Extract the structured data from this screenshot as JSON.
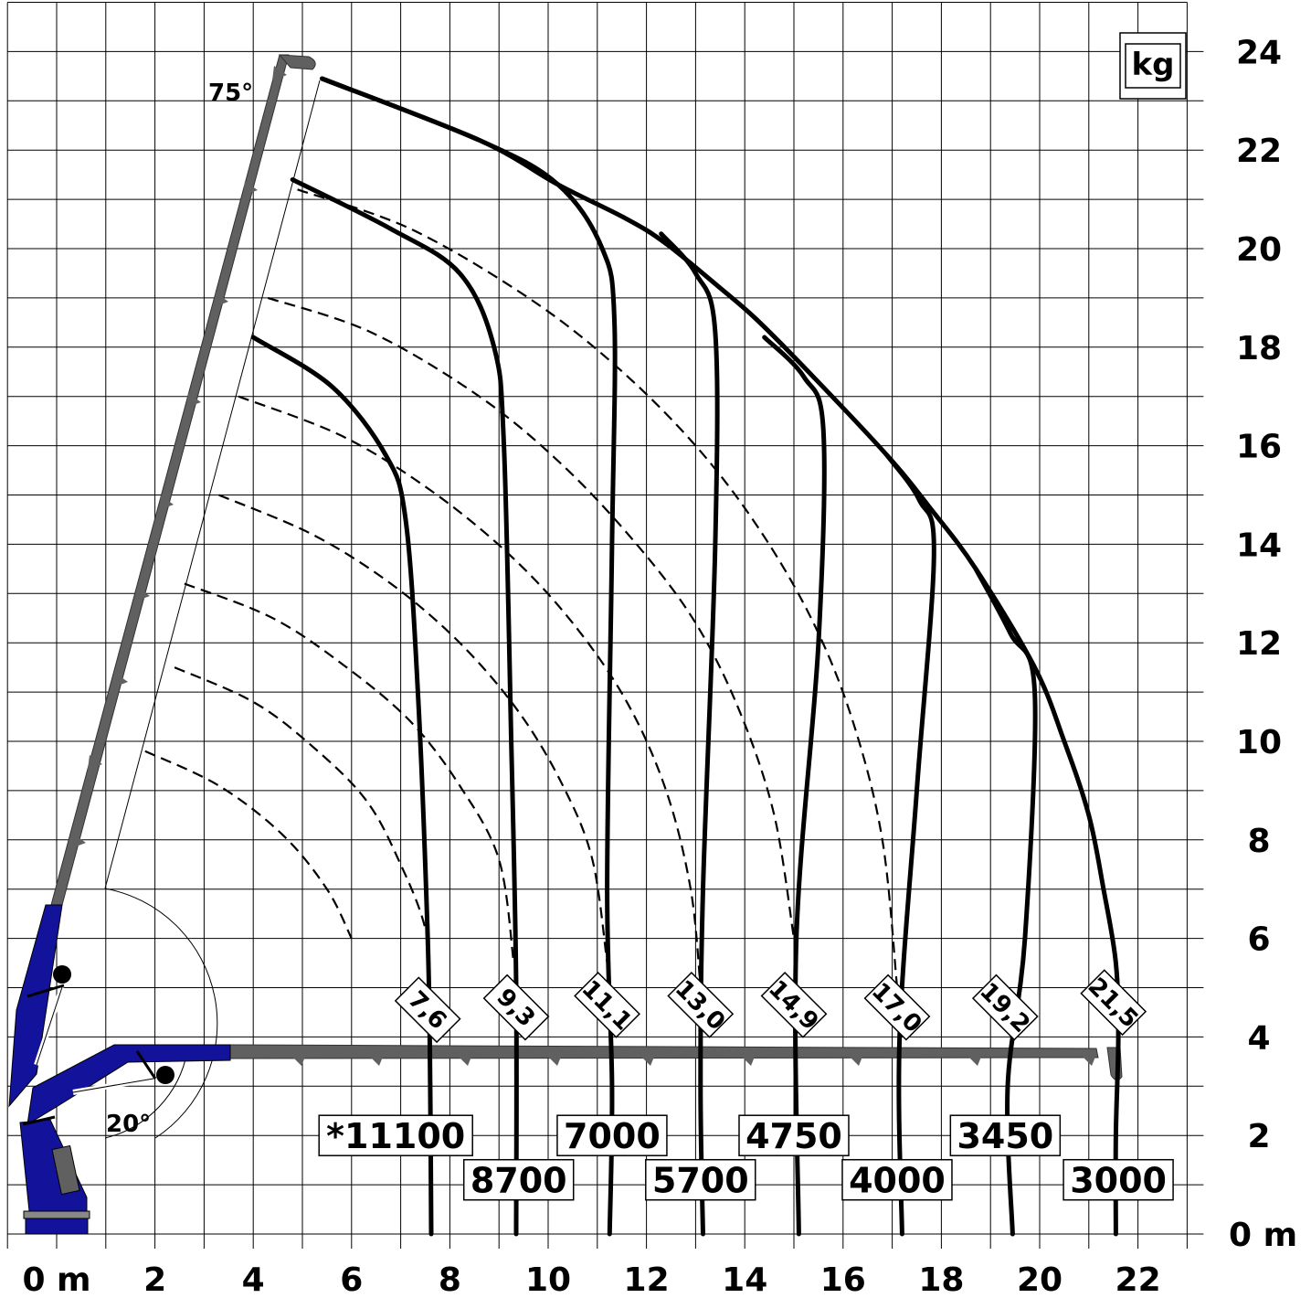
{
  "chart_data": {
    "type": "load-chart",
    "unit": "kg",
    "x_axis": {
      "range": [
        -1,
        23
      ],
      "ticks": [
        {
          "value": 0,
          "label": "0 m"
        },
        {
          "value": 2,
          "label": "2"
        },
        {
          "value": 4,
          "label": "4"
        },
        {
          "value": 6,
          "label": "6"
        },
        {
          "value": 8,
          "label": "8"
        },
        {
          "value": 10,
          "label": "10"
        },
        {
          "value": 12,
          "label": "12"
        },
        {
          "value": 14,
          "label": "14"
        },
        {
          "value": 16,
          "label": "16"
        },
        {
          "value": 18,
          "label": "18"
        },
        {
          "value": 20,
          "label": "20"
        },
        {
          "value": 22,
          "label": "22"
        }
      ]
    },
    "y_axis": {
      "range": [
        0,
        25
      ],
      "ticks": [
        {
          "value": 0,
          "label": "0 m"
        },
        {
          "value": 2,
          "label": "2"
        },
        {
          "value": 4,
          "label": "4"
        },
        {
          "value": 6,
          "label": "6"
        },
        {
          "value": 8,
          "label": "8"
        },
        {
          "value": 10,
          "label": "10"
        },
        {
          "value": 12,
          "label": "12"
        },
        {
          "value": 14,
          "label": "14"
        },
        {
          "value": 16,
          "label": "16"
        },
        {
          "value": 18,
          "label": "18"
        },
        {
          "value": 20,
          "label": "20"
        },
        {
          "value": 22,
          "label": "22"
        },
        {
          "value": 24,
          "label": "24"
        }
      ]
    },
    "grid": true,
    "boom_angles": [
      "75°",
      "20°"
    ],
    "reach_labels": [
      {
        "text": "7,6",
        "x": 7.55,
        "y": 4.55
      },
      {
        "text": "9,3",
        "x": 9.35,
        "y": 4.6
      },
      {
        "text": "11,1",
        "x": 11.2,
        "y": 4.65
      },
      {
        "text": "13,0",
        "x": 13.1,
        "y": 4.65
      },
      {
        "text": "14,9",
        "x": 15.0,
        "y": 4.65
      },
      {
        "text": "17,0",
        "x": 17.1,
        "y": 4.6
      },
      {
        "text": "19,2",
        "x": 19.3,
        "y": 4.6
      },
      {
        "text": "21,5",
        "x": 21.5,
        "y": 4.7
      }
    ],
    "capacities": [
      {
        "value": "*11100",
        "reach": "7,6",
        "x": 6.9,
        "y": 2.0
      },
      {
        "value": "8700",
        "reach": "9,3",
        "x": 9.4,
        "y": 1.1
      },
      {
        "value": "7000",
        "reach": "11,1",
        "x": 11.3,
        "y": 2.0
      },
      {
        "value": "5700",
        "reach": "13,0",
        "x": 13.1,
        "y": 1.1
      },
      {
        "value": "4750",
        "reach": "14,9",
        "x": 15.0,
        "y": 2.0
      },
      {
        "value": "4000",
        "reach": "17,0",
        "x": 17.1,
        "y": 1.1
      },
      {
        "value": "3450",
        "reach": "19,2",
        "x": 19.3,
        "y": 2.0
      },
      {
        "value": "3000",
        "reach": "21,5",
        "x": 21.6,
        "y": 1.1
      }
    ],
    "load_curves": [
      {
        "reach": "7,6",
        "points": [
          [
            4.0,
            18.2
          ],
          [
            5.6,
            17.2
          ],
          [
            6.7,
            15.8
          ],
          [
            7.1,
            14.5
          ],
          [
            7.35,
            11.0
          ],
          [
            7.55,
            6.0
          ],
          [
            7.6,
            3.0
          ],
          [
            7.62,
            0.0
          ]
        ]
      },
      {
        "reach": "9,3",
        "points": [
          [
            4.8,
            21.4
          ],
          [
            6.8,
            20.4
          ],
          [
            8.2,
            19.5
          ],
          [
            8.9,
            18.0
          ],
          [
            9.1,
            16.0
          ],
          [
            9.25,
            10.0
          ],
          [
            9.35,
            5.0
          ],
          [
            9.35,
            0.0
          ]
        ]
      },
      {
        "reach": "11,1",
        "points": [
          [
            5.4,
            23.45
          ],
          [
            8.6,
            22.2
          ],
          [
            10.2,
            21.3
          ],
          [
            11.1,
            20.0
          ],
          [
            11.35,
            18.5
          ],
          [
            11.3,
            14.0
          ],
          [
            11.2,
            7.0
          ],
          [
            11.3,
            3.0
          ],
          [
            11.25,
            0.0
          ]
        ]
      },
      {
        "reach": "13,0",
        "points": [
          [
            12.3,
            20.3
          ],
          [
            13.0,
            19.5
          ],
          [
            13.4,
            18.3
          ],
          [
            13.4,
            14.0
          ],
          [
            13.15,
            7.0
          ],
          [
            13.1,
            3.0
          ],
          [
            13.15,
            0.0
          ]
        ]
      },
      {
        "reach": "14,9",
        "points": [
          [
            14.4,
            18.2
          ],
          [
            15.2,
            17.4
          ],
          [
            15.6,
            16.3
          ],
          [
            15.5,
            12.0
          ],
          [
            15.05,
            6.0
          ],
          [
            15.1,
            0.0
          ]
        ]
      },
      {
        "reach": "17,0",
        "points": [
          [
            16.9,
            15.8
          ],
          [
            17.55,
            14.9
          ],
          [
            17.85,
            13.8
          ],
          [
            17.5,
            9.0
          ],
          [
            17.15,
            4.0
          ],
          [
            17.2,
            0.0
          ]
        ]
      },
      {
        "reach": "19,2",
        "points": [
          [
            18.7,
            13.5
          ],
          [
            19.4,
            12.2
          ],
          [
            19.9,
            11.0
          ],
          [
            19.7,
            6.0
          ],
          [
            19.35,
            3.0
          ],
          [
            19.45,
            0.0
          ]
        ]
      },
      {
        "reach": "21,5",
        "points": [
          [
            5.4,
            23.45
          ],
          [
            8.6,
            22.2
          ],
          [
            10.2,
            21.3
          ],
          [
            11.6,
            20.6
          ],
          [
            12.4,
            20.1
          ],
          [
            13.5,
            19.2
          ],
          [
            14.2,
            18.6
          ],
          [
            15.2,
            17.6
          ],
          [
            16.9,
            15.8
          ],
          [
            17.8,
            14.7
          ],
          [
            18.7,
            13.5
          ],
          [
            19.9,
            11.5
          ],
          [
            20.5,
            10.0
          ],
          [
            21.0,
            8.5
          ],
          [
            21.3,
            7.0
          ],
          [
            21.55,
            5.5
          ],
          [
            21.6,
            4.0
          ],
          [
            21.55,
            2.0
          ],
          [
            21.55,
            0.0
          ]
        ]
      }
    ],
    "height_arcs": [
      {
        "points": [
          [
            4.9,
            21.2
          ],
          [
            7.2,
            20.4
          ],
          [
            9.6,
            19.0
          ],
          [
            11.4,
            17.6
          ],
          [
            13.0,
            16.0
          ],
          [
            14.3,
            14.3
          ],
          [
            15.4,
            12.4
          ],
          [
            16.2,
            10.4
          ],
          [
            16.8,
            8.0
          ],
          [
            17.1,
            5.0
          ]
        ]
      },
      {
        "points": [
          [
            4.3,
            19.0
          ],
          [
            6.4,
            18.3
          ],
          [
            8.6,
            17.0
          ],
          [
            10.3,
            15.6
          ],
          [
            11.8,
            14.0
          ],
          [
            13.0,
            12.4
          ],
          [
            13.9,
            10.6
          ],
          [
            14.6,
            8.5
          ],
          [
            15.0,
            6.0
          ]
        ]
      },
      {
        "points": [
          [
            3.7,
            17.0
          ],
          [
            5.8,
            16.2
          ],
          [
            7.6,
            15.1
          ],
          [
            9.2,
            13.8
          ],
          [
            10.5,
            12.4
          ],
          [
            11.6,
            10.8
          ],
          [
            12.4,
            9.0
          ],
          [
            12.9,
            7.0
          ],
          [
            13.1,
            5.0
          ]
        ]
      },
      {
        "points": [
          [
            3.3,
            15.0
          ],
          [
            5.2,
            14.2
          ],
          [
            6.8,
            13.2
          ],
          [
            8.2,
            12.0
          ],
          [
            9.4,
            10.6
          ],
          [
            10.3,
            9.1
          ],
          [
            10.9,
            7.6
          ],
          [
            11.2,
            5.5
          ]
        ]
      },
      {
        "points": [
          [
            2.6,
            13.2
          ],
          [
            4.4,
            12.5
          ],
          [
            5.9,
            11.5
          ],
          [
            7.2,
            10.4
          ],
          [
            8.2,
            9.1
          ],
          [
            9.0,
            7.6
          ],
          [
            9.3,
            5.5
          ]
        ]
      },
      {
        "points": [
          [
            2.4,
            11.5
          ],
          [
            4.0,
            10.8
          ],
          [
            5.2,
            9.9
          ],
          [
            6.3,
            8.8
          ],
          [
            7.0,
            7.5
          ],
          [
            7.5,
            6.2
          ],
          [
            7.6,
            5.0
          ]
        ]
      },
      {
        "points": [
          [
            1.8,
            9.8
          ],
          [
            3.3,
            9.1
          ],
          [
            4.6,
            8.1
          ],
          [
            5.5,
            7.0
          ],
          [
            6.0,
            6.0
          ]
        ]
      }
    ]
  },
  "colors": {
    "boom_gray": "#606060",
    "base_blue": "#12129a",
    "grid": "#000000",
    "curve": "#000000"
  }
}
